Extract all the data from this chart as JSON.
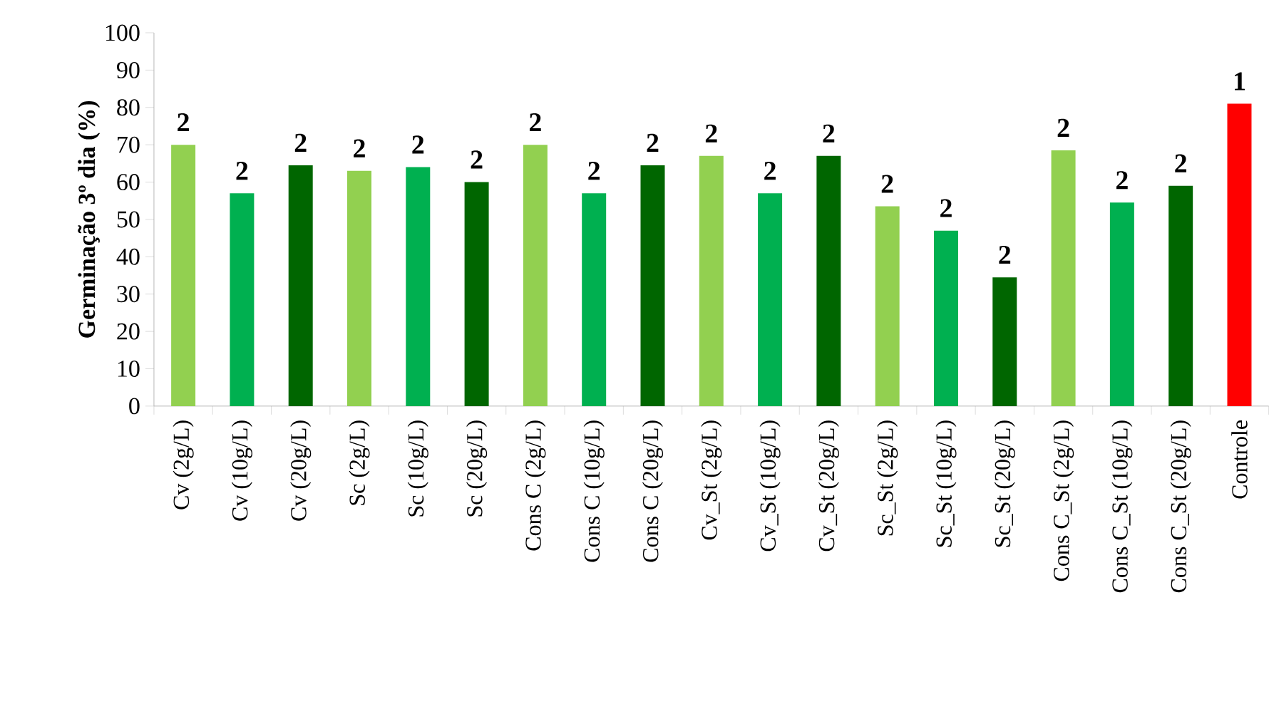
{
  "chart_data": {
    "type": "bar",
    "ylabel": "Germinação 3º dia (%)",
    "categories": [
      "Cv (2g/L)",
      "Cv (10g/L)",
      "Cv (20g/L)",
      "Sc (2g/L)",
      "Sc (10g/L)",
      "Sc (20g/L)",
      "Cons C (2g/L)",
      "Cons C (10g/L)",
      "Cons C (20g/L)",
      "Cv_St (2g/L)",
      "Cv_St (10g/L)",
      "Cv_St (20g/L)",
      "Sc_St (2g/L)",
      "Sc_St (10g/L)",
      "Sc_St (20g/L)",
      "Cons C_St (2g/L)",
      "Cons C_St (10g/L)",
      "Cons C_St (20g/L)",
      "Controle"
    ],
    "values": [
      70,
      57,
      64.5,
      63,
      64,
      60,
      70,
      57,
      64.5,
      67,
      57,
      67,
      53.5,
      47,
      34.5,
      68.5,
      54.5,
      59,
      81
    ],
    "colors": [
      "#92d050",
      "#00b050",
      "#006600",
      "#92d050",
      "#00b050",
      "#006600",
      "#92d050",
      "#00b050",
      "#006600",
      "#92d050",
      "#00b050",
      "#006600",
      "#92d050",
      "#00b050",
      "#006600",
      "#92d050",
      "#00b050",
      "#006600",
      "#ff0000"
    ],
    "annotations": [
      "2",
      "2",
      "2",
      "2",
      "2",
      "2",
      "2",
      "2",
      "2",
      "2",
      "2",
      "2",
      "2",
      "2",
      "2",
      "2",
      "2",
      "2",
      "1"
    ],
    "ylim": [
      0,
      100
    ],
    "yticks": [
      0,
      10,
      20,
      30,
      40,
      50,
      60,
      70,
      80,
      90,
      100
    ],
    "grid": false
  }
}
